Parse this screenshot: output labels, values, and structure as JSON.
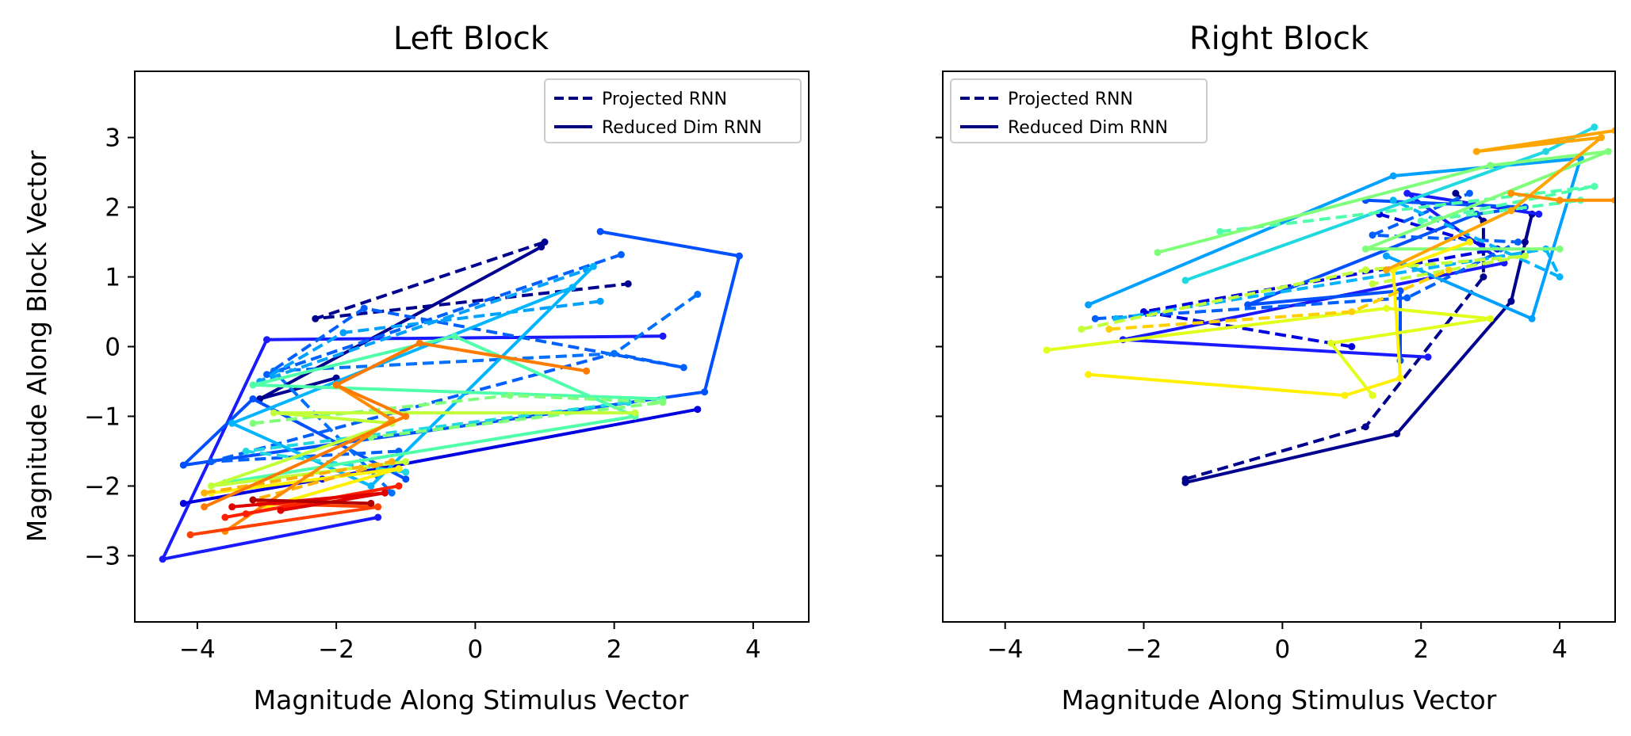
{
  "chart_data": [
    {
      "type": "line",
      "title": "Left Block",
      "xlabel": "Magnitude Along Stimulus Vector",
      "ylabel": "Magnitude Along Block Vector",
      "xlim": [
        -4.9,
        4.8
      ],
      "ylim": [
        -3.95,
        3.95
      ],
      "xticks": [
        -4,
        -2,
        0,
        2,
        4
      ],
      "yticks": [
        -3,
        -2,
        -1,
        0,
        1,
        2,
        3
      ],
      "xtick_labels": [
        "−4",
        "−2",
        "0",
        "2",
        "4"
      ],
      "ytick_labels": [
        "−3",
        "−2",
        "−1",
        "0",
        "1",
        "2",
        "3"
      ],
      "show_ylabel": true,
      "show_ytick_labels": true,
      "grid": false,
      "legend": {
        "position": "upper right",
        "entries": [
          {
            "label": "Projected RNN",
            "style": "dashed",
            "color": "#00007f"
          },
          {
            "label": "Reduced Dim RNN",
            "style": "solid",
            "color": "#00007f"
          }
        ]
      },
      "series": [
        {
          "color": "#00008f",
          "style": "dashed",
          "x": [
            1.0,
            -2.3,
            2.2
          ],
          "y": [
            1.5,
            0.4,
            0.9
          ]
        },
        {
          "color": "#00008f",
          "style": "solid",
          "x": [
            0.95,
            -3.1,
            -2.0
          ],
          "y": [
            1.43,
            -0.75,
            -0.45
          ]
        },
        {
          "color": "#1a1aff",
          "style": "solid",
          "x": [
            2.7,
            -3.0,
            -4.5,
            -1.4
          ],
          "y": [
            0.15,
            0.1,
            -3.05,
            -2.45
          ]
        },
        {
          "color": "#0050ff",
          "style": "solid",
          "x": [
            1.8,
            3.8,
            3.3,
            -4.2,
            -3.2,
            -1.0
          ],
          "y": [
            1.65,
            1.3,
            -0.65,
            -1.7,
            -0.75,
            -1.9
          ]
        },
        {
          "color": "#0060ff",
          "style": "dashed",
          "x": [
            2.1,
            -3.0,
            -1.6,
            3.0,
            2.0,
            -3.8,
            -1.1
          ],
          "y": [
            1.32,
            -0.4,
            0.55,
            -0.3,
            -0.1,
            -1.65,
            -1.5
          ]
        },
        {
          "color": "#0000e0",
          "style": "solid",
          "x": [
            3.2,
            -2.2,
            -4.2
          ],
          "y": [
            -0.9,
            -1.9,
            -2.25
          ]
        },
        {
          "color": "#0070ff",
          "style": "dashed",
          "x": [
            3.2,
            2.0,
            -2.9,
            -1.2
          ],
          "y": [
            0.75,
            -0.1,
            -0.35,
            -2.1
          ]
        },
        {
          "color": "#00a0ff",
          "style": "dashed",
          "x": [
            1.8,
            -1.9,
            -3.1,
            1.6
          ],
          "y": [
            0.65,
            0.2,
            -0.5,
            1.1
          ]
        },
        {
          "color": "#00b4ff",
          "style": "solid",
          "x": [
            1.4,
            -3.5,
            -1.5,
            1.7
          ],
          "y": [
            0.85,
            -1.1,
            -2.0,
            1.15
          ]
        },
        {
          "color": "#20d8e0",
          "style": "dashed",
          "x": [
            2.2,
            -3.3,
            -1.0
          ],
          "y": [
            -0.8,
            -1.5,
            -1.8
          ]
        },
        {
          "color": "#50ffaa",
          "style": "solid",
          "x": [
            2.7,
            -3.2,
            -0.3,
            2.3,
            -3.6
          ],
          "y": [
            -0.75,
            -0.55,
            0.15,
            -1.0,
            -1.95
          ]
        },
        {
          "color": "#80ff7a",
          "style": "dashed",
          "x": [
            -3.2,
            0.5,
            2.7,
            -1.5
          ],
          "y": [
            -1.1,
            -0.7,
            -0.8,
            -1.3
          ]
        },
        {
          "color": "#c0ff3a",
          "style": "solid",
          "x": [
            2.3,
            -2.9,
            -1.2,
            -3.8,
            -1.0
          ],
          "y": [
            -0.95,
            -0.95,
            -1.1,
            -2.0,
            -1.65
          ]
        },
        {
          "color": "#fff000",
          "style": "solid",
          "x": [
            -3.8,
            -1.1,
            -3.0
          ],
          "y": [
            -2.1,
            -1.75,
            -2.3
          ]
        },
        {
          "color": "#ffb000",
          "style": "dashed",
          "x": [
            -3.9,
            -1.2,
            -3.2
          ],
          "y": [
            -2.1,
            -1.65,
            -2.2
          ]
        },
        {
          "color": "#ff8c00",
          "style": "solid",
          "x": [
            -2.0,
            -1.2,
            -3.6
          ],
          "y": [
            -0.55,
            -1.05,
            -2.65
          ]
        },
        {
          "color": "#ff7a00",
          "style": "solid",
          "x": [
            1.6,
            -0.8,
            -2.0,
            -1.0,
            -3.9
          ],
          "y": [
            -0.35,
            0.05,
            -0.55,
            -1.0,
            -2.3
          ]
        },
        {
          "color": "#ff4000",
          "style": "solid",
          "x": [
            -4.1,
            -1.4,
            -3.1
          ],
          "y": [
            -2.7,
            -2.3,
            -2.25
          ]
        },
        {
          "color": "#ff2000",
          "style": "solid",
          "x": [
            -3.6,
            -1.1,
            -3.3
          ],
          "y": [
            -2.45,
            -2.0,
            -2.4
          ]
        },
        {
          "color": "#e00000",
          "style": "solid",
          "x": [
            -3.5,
            -1.3,
            -2.8
          ],
          "y": [
            -2.3,
            -2.1,
            -2.35
          ]
        },
        {
          "color": "#b00000",
          "style": "solid",
          "x": [
            -3.2,
            -1.5
          ],
          "y": [
            -2.2,
            -2.25
          ]
        }
      ]
    },
    {
      "type": "line",
      "title": "Right Block",
      "xlabel": "Magnitude Along Stimulus Vector",
      "ylabel": "",
      "xlim": [
        -4.9,
        4.8
      ],
      "ylim": [
        -3.95,
        3.95
      ],
      "xticks": [
        -4,
        -2,
        0,
        2,
        4
      ],
      "yticks": [
        -3,
        -2,
        -1,
        0,
        1,
        2,
        3
      ],
      "xtick_labels": [
        "−4",
        "−2",
        "0",
        "2",
        "4"
      ],
      "ytick_labels": [],
      "show_ylabel": false,
      "show_ytick_labels": false,
      "grid": false,
      "legend": {
        "position": "upper left",
        "entries": [
          {
            "label": "Projected RNN",
            "style": "dashed",
            "color": "#00007f"
          },
          {
            "label": "Reduced Dim RNN",
            "style": "solid",
            "color": "#00007f"
          }
        ]
      },
      "series": [
        {
          "color": "#00008f",
          "style": "dashed",
          "x": [
            -1.4,
            1.2,
            2.9,
            2.9,
            2.5
          ],
          "y": [
            -1.9,
            -1.15,
            1.0,
            1.8,
            2.2
          ]
        },
        {
          "color": "#00008f",
          "style": "solid",
          "x": [
            -1.4,
            1.65,
            3.3,
            3.6,
            3.5
          ],
          "y": [
            -1.95,
            -1.25,
            0.65,
            1.9,
            1.5
          ]
        },
        {
          "color": "#1a1aff",
          "style": "solid",
          "x": [
            2.1,
            -2.3,
            3.2,
            1.8,
            3.7
          ],
          "y": [
            -0.15,
            0.1,
            1.2,
            2.2,
            1.9
          ]
        },
        {
          "color": "#0000e0",
          "style": "dashed",
          "x": [
            1.0,
            -2.0,
            3.1,
            1.4
          ],
          "y": [
            0.0,
            0.5,
            1.4,
            1.9
          ]
        },
        {
          "color": "#0050ff",
          "style": "solid",
          "x": [
            1.7,
            1.7,
            -0.5,
            2.8,
            3.5,
            1.2
          ],
          "y": [
            -0.2,
            0.8,
            0.6,
            1.9,
            2.0,
            2.1
          ]
        },
        {
          "color": "#0060ff",
          "style": "dashed",
          "x": [
            -2.7,
            1.8,
            3.4,
            1.3,
            2.7
          ],
          "y": [
            0.4,
            0.7,
            1.5,
            1.6,
            2.2
          ]
        },
        {
          "color": "#00a0ff",
          "style": "solid",
          "x": [
            -2.8,
            1.6,
            4.3,
            3.6,
            1.5
          ],
          "y": [
            0.6,
            2.45,
            2.7,
            0.4,
            1.3
          ]
        },
        {
          "color": "#00b4ff",
          "style": "dashed",
          "x": [
            -2.4,
            3.8,
            4.0,
            1.6
          ],
          "y": [
            0.4,
            1.4,
            1.0,
            2.1
          ]
        },
        {
          "color": "#20d8e0",
          "style": "solid",
          "x": [
            -1.4,
            3.8,
            4.5
          ],
          "y": [
            0.95,
            2.8,
            3.15
          ]
        },
        {
          "color": "#50ffaa",
          "style": "dashed",
          "x": [
            -0.9,
            4.5,
            2.0,
            4.3
          ],
          "y": [
            1.65,
            2.3,
            1.8,
            2.1
          ]
        },
        {
          "color": "#80ff7a",
          "style": "solid",
          "x": [
            -1.8,
            3.0,
            4.7,
            1.2,
            4.0
          ],
          "y": [
            1.35,
            2.6,
            2.8,
            1.4,
            1.4
          ]
        },
        {
          "color": "#c0ff3a",
          "style": "dashed",
          "x": [
            -2.9,
            1.2,
            3.5,
            1.3
          ],
          "y": [
            0.25,
            1.1,
            1.3,
            0.9
          ]
        },
        {
          "color": "#e0ff1a",
          "style": "solid",
          "x": [
            -3.4,
            1.5,
            3.0,
            0.7,
            1.3
          ],
          "y": [
            -0.05,
            0.55,
            0.4,
            0.05,
            -0.7
          ]
        },
        {
          "color": "#fff000",
          "style": "solid",
          "x": [
            -2.8,
            0.9,
            1.7,
            1.6,
            2.7
          ],
          "y": [
            -0.4,
            -0.7,
            -0.45,
            1.1,
            1.5
          ]
        },
        {
          "color": "#ffd000",
          "style": "dashed",
          "x": [
            -2.5,
            1.0,
            2.4
          ],
          "y": [
            0.25,
            0.5,
            1.1
          ]
        },
        {
          "color": "#ffa500",
          "style": "solid",
          "x": [
            1.5,
            3.3,
            4.6,
            2.8,
            4.8
          ],
          "y": [
            1.1,
            1.95,
            3.0,
            2.8,
            3.1
          ]
        },
        {
          "color": "#ff9000",
          "style": "solid",
          "x": [
            3.3,
            4.0,
            4.8
          ],
          "y": [
            2.2,
            2.1,
            2.1
          ]
        }
      ]
    }
  ]
}
